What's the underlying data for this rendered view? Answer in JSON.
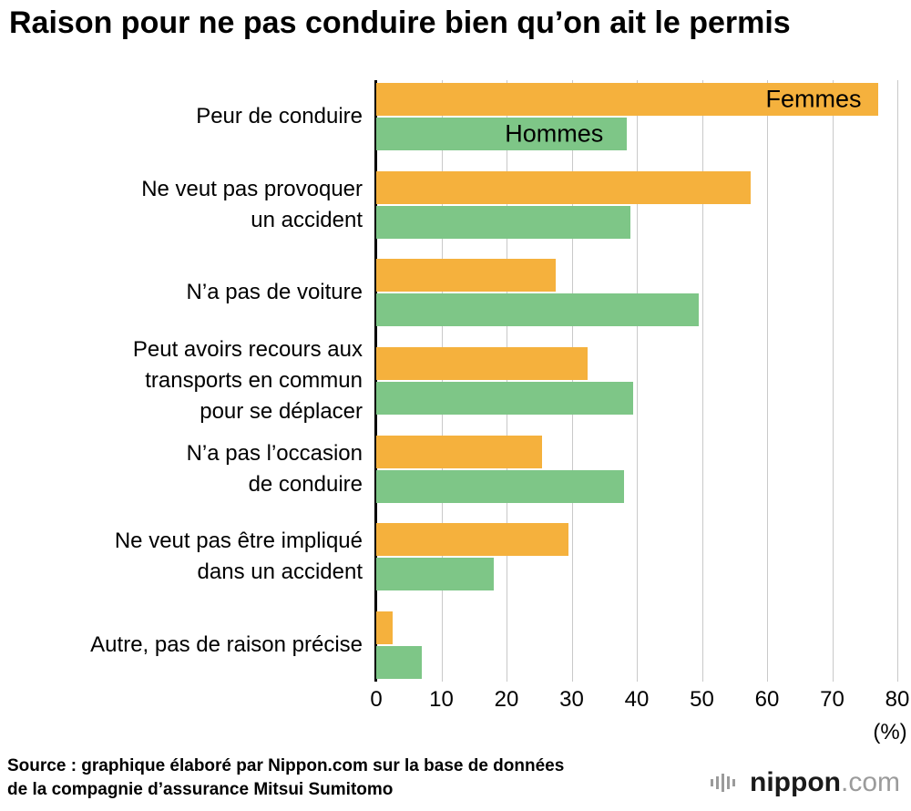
{
  "title": "Raison pour ne pas conduire bien qu’on ait le permis",
  "chart_data": {
    "type": "bar",
    "orientation": "horizontal",
    "title": "Raison pour ne pas conduire bien qu’on ait le permis",
    "categories": [
      "Peur de conduire",
      "Ne veut pas provoquer\nun accident",
      "N’a pas de voiture",
      "Peut avoirs recours aux\ntransports en commun\npour se déplacer",
      "N’a pas l’occasion\nde conduire",
      "Ne veut pas être impliqué\ndans un accident",
      "Autre, pas de raison précise"
    ],
    "series": [
      {
        "name": "Femmes",
        "color": "#F5B13D",
        "values": [
          77,
          57.5,
          27.5,
          32.5,
          25.5,
          29.5,
          2.5
        ]
      },
      {
        "name": "Hommes",
        "color": "#7EC687",
        "values": [
          38.5,
          39,
          49.5,
          39.5,
          38,
          18,
          7
        ]
      }
    ],
    "xlim": [
      0,
      80
    ],
    "xticks": [
      0,
      10,
      20,
      30,
      40,
      50,
      60,
      70,
      80
    ],
    "x_unit_label": "(%)",
    "legend_position": "inside-first-bars",
    "grid": "vertical"
  },
  "source": {
    "line1": "Source : graphique élaboré par Nippon.com sur la base de données",
    "line2": "de la compagnie d’assurance Mitsui Sumitomo"
  },
  "logo": {
    "name": "nippon",
    "tld": ".com",
    "icon": "waveform-icon"
  }
}
